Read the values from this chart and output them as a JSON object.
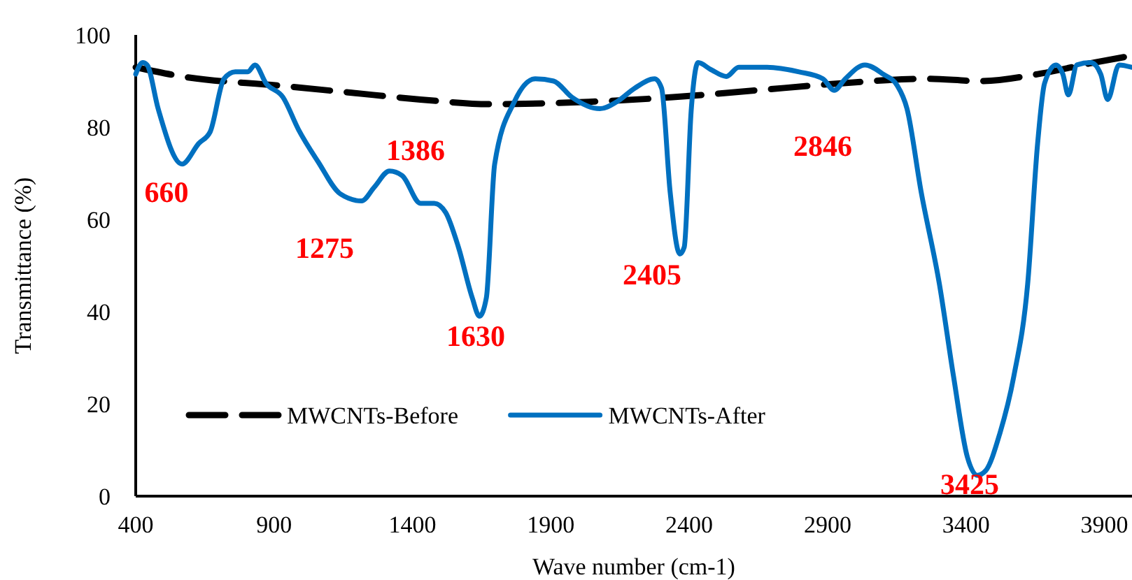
{
  "chart_data": {
    "type": "line",
    "xlabel": "Wave number (cm-1)",
    "ylabel": "Transmittance (%)",
    "xlim": [
      400,
      4000
    ],
    "xticks": [
      400,
      900,
      1400,
      1900,
      2400,
      2900,
      3400,
      3900
    ],
    "ylim": [
      0,
      100
    ],
    "yticks": [
      0,
      20,
      40,
      60,
      80,
      100
    ],
    "grid": false,
    "legend": "bottom",
    "marker": "none",
    "series": [
      {
        "name": "MWCNTs-Before",
        "color": "#000000",
        "line_style": "dashed",
        "x": [
          400,
          567,
          922,
          1175,
          1429,
          1682,
          2037,
          2341,
          2645,
          2949,
          3253,
          3456,
          3659,
          3862,
          4000
        ],
        "values": [
          93,
          91,
          89,
          87.5,
          86,
          85,
          85.5,
          86.5,
          88,
          89.5,
          90.5,
          90,
          91.5,
          94,
          95.5
        ]
      },
      {
        "name": "MWCNTs-After",
        "color": "#0070c0",
        "line_style": "solid",
        "x": [
          400,
          425,
          441,
          481,
          567,
          628,
          669,
          719,
          760,
          805,
          831,
          871,
          932,
          988,
          1059,
          1140,
          1216,
          1262,
          1317,
          1363,
          1429,
          1479,
          1520,
          1566,
          1616,
          1642,
          1667,
          1697,
          1768,
          1844,
          1910,
          1976,
          2077,
          2138,
          2204,
          2275,
          2300,
          2331,
          2366,
          2382,
          2407,
          2432,
          2478,
          2534,
          2579,
          2681,
          2797,
          2883,
          2924,
          2964,
          3035,
          3101,
          3152,
          3187,
          3238,
          3304,
          3355,
          3405,
          3441,
          3471,
          3522,
          3573,
          3623,
          3659,
          3684,
          3725,
          3750,
          3770,
          3801,
          3851,
          3887,
          3912,
          3953,
          3998
        ],
        "values": [
          91.5,
          94,
          93.5,
          84,
          72,
          76.5,
          79,
          90.5,
          92,
          92,
          93.5,
          89.5,
          86.5,
          79.5,
          72.5,
          65.5,
          64,
          67,
          70.5,
          69.5,
          63.5,
          63.5,
          61.5,
          54,
          43,
          39,
          43,
          72,
          85.5,
          90.5,
          90,
          86.5,
          84,
          85.5,
          88.5,
          90.5,
          88.5,
          66,
          52.5,
          54,
          83.5,
          94,
          92.5,
          91,
          93,
          93,
          92,
          90.5,
          88,
          90.5,
          93.5,
          91.5,
          89,
          84,
          66,
          46,
          26,
          8.5,
          4.5,
          5.5,
          13.5,
          26,
          46,
          76.5,
          89.5,
          93.5,
          91.5,
          87,
          93.5,
          94,
          91.5,
          86,
          93.5,
          93
        ]
      }
    ],
    "annotations": [
      "660",
      "1386",
      "1275",
      "1630",
      "2405",
      "2846",
      "3425"
    ]
  }
}
